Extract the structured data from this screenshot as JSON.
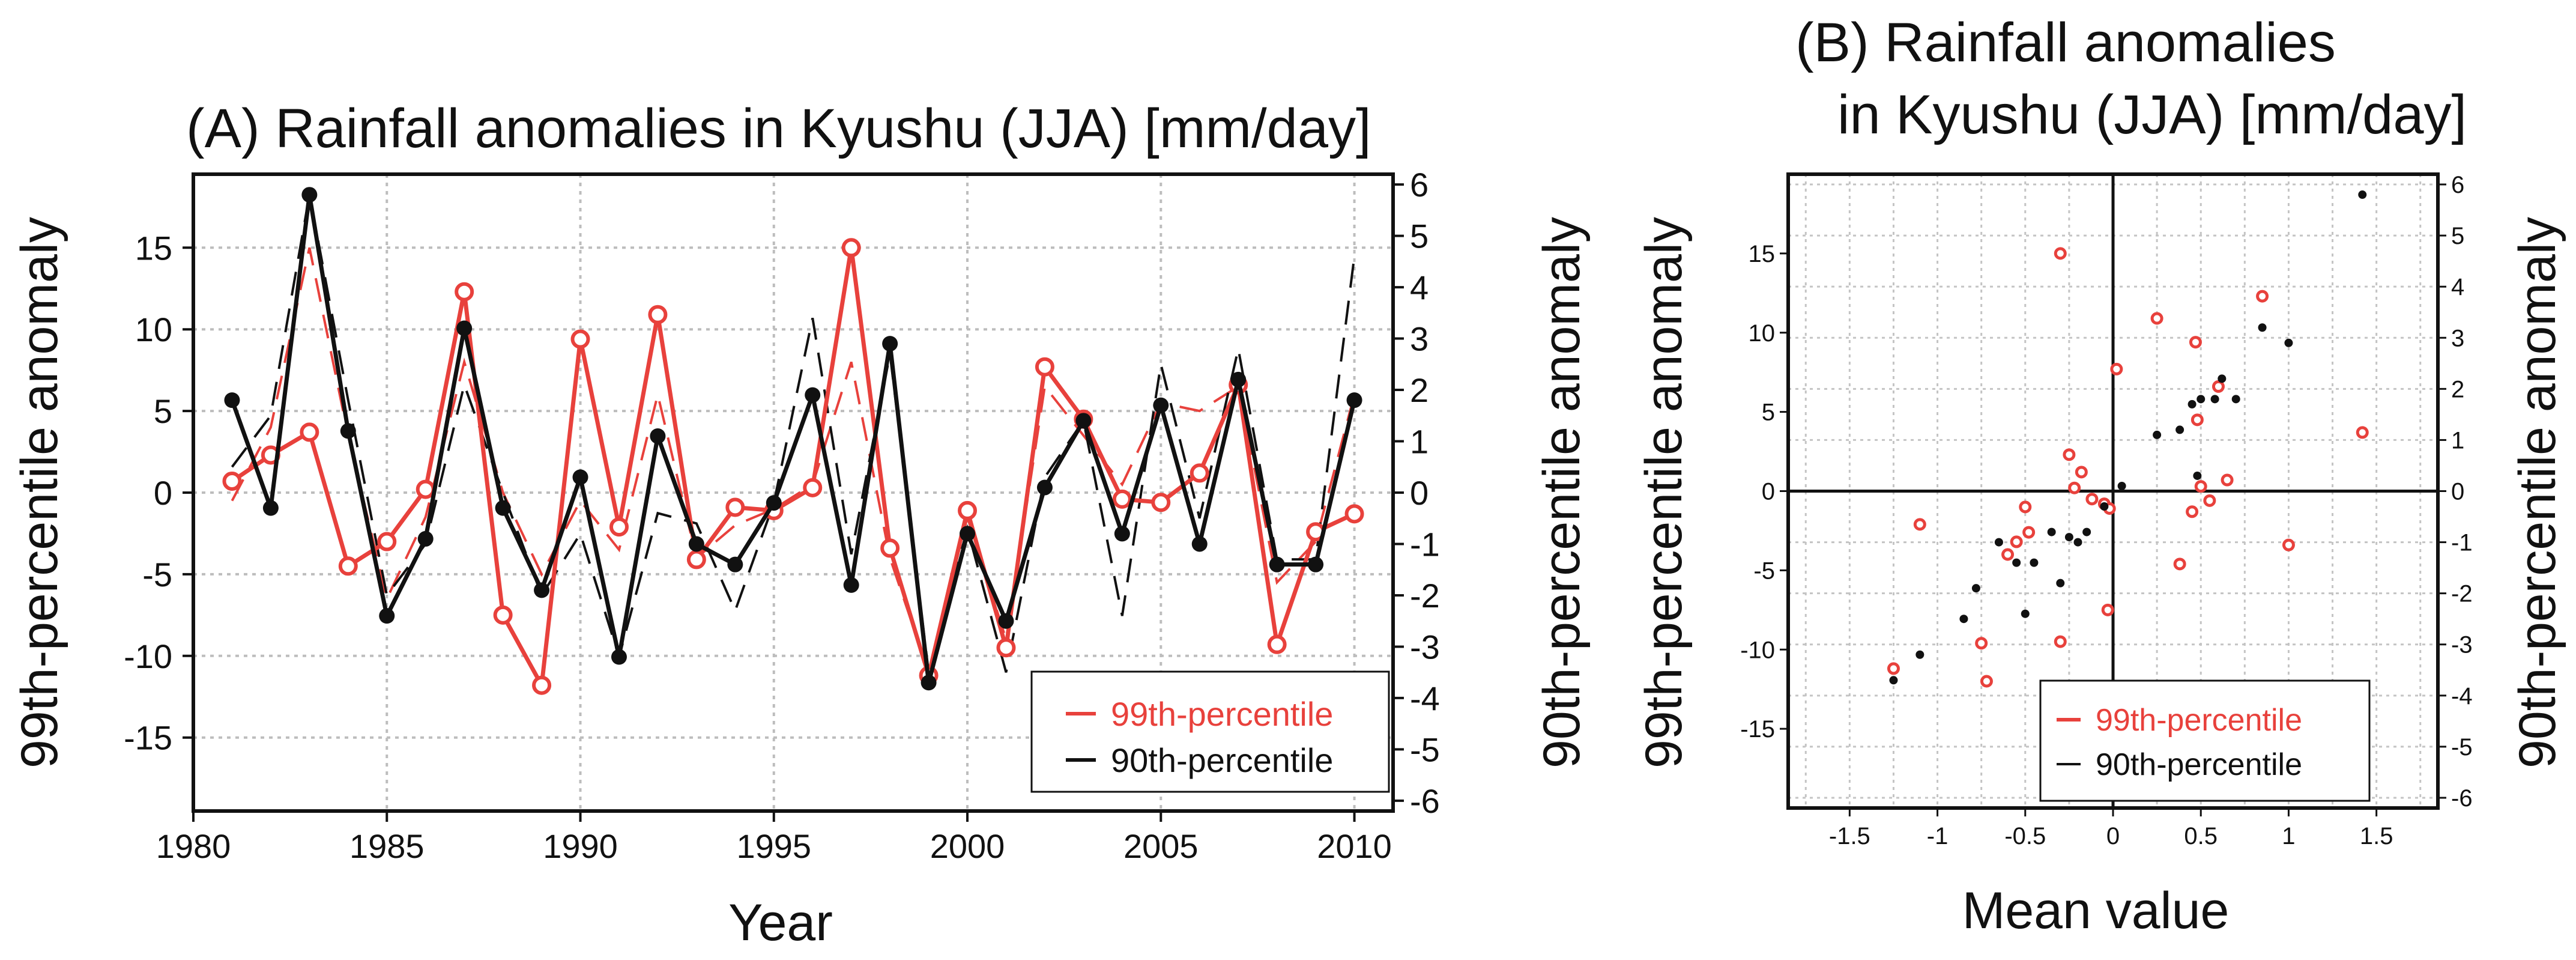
{
  "chart_data": [
    {
      "id": "A",
      "type": "line",
      "title": "(A) Rainfall anomalies in Kyushu (JJA) [mm/day]",
      "xlabel": "Year",
      "ylabel_left": "99th-percentile anomaly",
      "ylabel_right": "90th-percentile anomaly",
      "xlim": [
        1980,
        2011
      ],
      "ylim_left": [
        -19.5,
        19.5
      ],
      "ylim_right": [
        -6.2,
        6.2
      ],
      "xticks": [
        1980,
        1985,
        1990,
        1995,
        2000,
        2005,
        2010
      ],
      "yticks_left": [
        -15,
        -10,
        -5,
        0,
        5,
        10,
        15
      ],
      "yticks_right": [
        -6,
        -5,
        -4,
        -3,
        -2,
        -1,
        0,
        1,
        2,
        3,
        4,
        5,
        6
      ],
      "legend": {
        "position": "bottom-right",
        "entries": [
          "99th-percentile",
          "90th-percentile"
        ]
      },
      "x": [
        1981,
        1982,
        1983,
        1984,
        1985,
        1986,
        1987,
        1988,
        1989,
        1990,
        1991,
        1992,
        1993,
        1994,
        1995,
        1996,
        1997,
        1998,
        1999,
        2000,
        2001,
        2002,
        2003,
        2004,
        2005,
        2006,
        2007,
        2008,
        2009,
        2010
      ],
      "series": [
        {
          "name": "99th-percentile",
          "axis": "left",
          "color": "#e8413c",
          "marker": "open-circle",
          "values": [
            0.7,
            2.3,
            3.7,
            -4.5,
            -3.0,
            0.2,
            12.3,
            -7.5,
            -11.8,
            9.4,
            -2.1,
            10.9,
            -4.1,
            -0.9,
            -1.1,
            0.3,
            15.0,
            -3.4,
            -11.2,
            -1.1,
            -9.5,
            7.7,
            4.5,
            -0.4,
            -0.6,
            1.2,
            6.6,
            -9.3,
            -2.4,
            -1.3
          ]
        },
        {
          "name": "90th-percentile",
          "axis": "right",
          "color": "#111111",
          "marker": "filled-dot",
          "values": [
            1.8,
            -0.3,
            5.8,
            1.2,
            -2.4,
            -0.9,
            3.2,
            -0.3,
            -1.9,
            0.3,
            -3.2,
            1.1,
            -1.0,
            -1.4,
            -0.2,
            1.9,
            -1.8,
            2.9,
            -3.7,
            -0.8,
            -2.5,
            0.1,
            1.4,
            -0.8,
            1.7,
            -1.0,
            2.2,
            -1.4,
            -1.4,
            1.8
          ]
        },
        {
          "name": "99th-percentile (dashed)",
          "axis": "left",
          "color": "#e8413c",
          "style": "dashed",
          "values": [
            -0.5,
            4.0,
            15.0,
            3.5,
            -6.5,
            -1.5,
            8.0,
            0.0,
            -5.0,
            -0.5,
            -3.5,
            6.0,
            -4.0,
            -2.0,
            -1.0,
            0.5,
            8.0,
            -4.0,
            -11.0,
            -1.5,
            -9.0,
            6.5,
            3.5,
            0.5,
            5.5,
            5.0,
            6.5,
            -5.5,
            -3.0,
            6.0
          ]
        },
        {
          "name": "90th-percentile (dashed)",
          "axis": "right",
          "color": "#111111",
          "style": "dashed",
          "values": [
            0.5,
            1.5,
            5.8,
            1.8,
            -2.0,
            -1.0,
            2.1,
            0.0,
            -2.0,
            -0.8,
            -3.2,
            -0.4,
            -0.6,
            -2.3,
            -0.2,
            3.4,
            -1.2,
            2.7,
            -3.5,
            -0.7,
            -3.5,
            0.3,
            1.4,
            -2.4,
            2.5,
            -0.5,
            2.8,
            -1.3,
            -1.3,
            4.6
          ]
        }
      ]
    },
    {
      "id": "B",
      "type": "scatter",
      "title": "(B) Rainfall anomalies",
      "title_line2": "in Kyushu (JJA) [mm/day]",
      "xlabel": "Mean value",
      "ylabel_left": "99th-percentile anomaly",
      "ylabel_right": "90th-percentile anomaly",
      "xlim": [
        -1.85,
        1.85
      ],
      "ylim_left": [
        -20,
        20
      ],
      "ylim_right": [
        -6.2,
        6.2
      ],
      "xticks": [
        -1.5,
        -1,
        -0.5,
        0,
        0.5,
        1,
        1.5
      ],
      "xtick_labels": [
        "-1.5",
        "-1",
        "-0.5",
        "0",
        "0.5",
        "1",
        "1.5"
      ],
      "yticks_left": [
        -15,
        -10,
        -5,
        0,
        5,
        10,
        15
      ],
      "yticks_right": [
        -6,
        -5,
        -4,
        -3,
        -2,
        -1,
        0,
        1,
        2,
        3,
        4,
        5,
        6
      ],
      "legend": {
        "position": "bottom-right",
        "entries": [
          "99th-percentile",
          "90th-percentile"
        ]
      },
      "series": [
        {
          "name": "99th-percentile",
          "axis": "left",
          "color": "#e8413c",
          "marker": "open-circle",
          "points": [
            [
              -1.25,
              -11.2
            ],
            [
              -1.1,
              -2.1
            ],
            [
              -0.75,
              -9.6
            ],
            [
              -0.72,
              -12.0
            ],
            [
              -0.6,
              -4.0
            ],
            [
              -0.55,
              -3.2
            ],
            [
              -0.5,
              -1.0
            ],
            [
              -0.48,
              -2.6
            ],
            [
              -0.3,
              -9.5
            ],
            [
              -0.3,
              15.0
            ],
            [
              -0.25,
              2.3
            ],
            [
              -0.22,
              0.2
            ],
            [
              -0.18,
              1.2
            ],
            [
              -0.12,
              -0.5
            ],
            [
              -0.05,
              -0.8
            ],
            [
              -0.03,
              -7.5
            ],
            [
              -0.02,
              -1.1
            ],
            [
              0.02,
              7.7
            ],
            [
              0.25,
              10.9
            ],
            [
              0.38,
              -4.6
            ],
            [
              0.45,
              -1.3
            ],
            [
              0.47,
              9.4
            ],
            [
              0.48,
              4.5
            ],
            [
              0.5,
              0.3
            ],
            [
              0.55,
              -0.6
            ],
            [
              0.6,
              6.6
            ],
            [
              0.65,
              0.7
            ],
            [
              0.85,
              12.3
            ],
            [
              1.0,
              -3.4
            ],
            [
              1.42,
              3.7
            ]
          ]
        },
        {
          "name": "90th-percentile",
          "axis": "right",
          "color": "#111111",
          "marker": "filled-dot",
          "points": [
            [
              -1.25,
              -3.7
            ],
            [
              -1.1,
              -3.2
            ],
            [
              -0.85,
              -2.5
            ],
            [
              -0.78,
              -1.9
            ],
            [
              -0.65,
              -1.0
            ],
            [
              -0.55,
              -1.4
            ],
            [
              -0.5,
              -2.4
            ],
            [
              -0.45,
              -1.4
            ],
            [
              -0.35,
              -0.8
            ],
            [
              -0.3,
              -1.8
            ],
            [
              -0.25,
              -0.9
            ],
            [
              -0.2,
              -1.0
            ],
            [
              -0.15,
              -0.8
            ],
            [
              -0.05,
              -0.3
            ],
            [
              0.05,
              0.1
            ],
            [
              0.25,
              1.1
            ],
            [
              0.38,
              1.2
            ],
            [
              0.45,
              1.7
            ],
            [
              0.5,
              1.8
            ],
            [
              0.48,
              0.3
            ],
            [
              0.58,
              1.8
            ],
            [
              0.62,
              2.2
            ],
            [
              0.7,
              1.8
            ],
            [
              0.85,
              3.2
            ],
            [
              1.0,
              2.9
            ],
            [
              1.42,
              5.8
            ]
          ]
        }
      ]
    }
  ]
}
